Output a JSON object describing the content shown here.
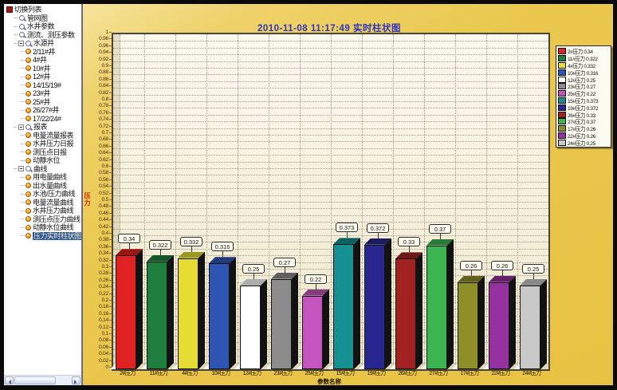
{
  "sidebar": {
    "items": [
      {
        "label": "切换列表",
        "level": 0,
        "icon": "list-icon",
        "expand": false,
        "selected": false
      },
      {
        "label": "管网图",
        "level": 1,
        "icon": "scope-icon",
        "expand": false,
        "selected": false
      },
      {
        "label": "水井参数",
        "level": 1,
        "icon": "scope-icon",
        "expand": false,
        "selected": false
      },
      {
        "label": "测流、测压参数",
        "level": 1,
        "icon": "scope-icon",
        "expand": false,
        "selected": false
      },
      {
        "label": "水源井",
        "level": 1,
        "icon": "scope-icon",
        "expand": true,
        "selected": false
      },
      {
        "label": "2/11#井",
        "level": 2,
        "icon": "ball-icon",
        "expand": false,
        "selected": false
      },
      {
        "label": "4#井",
        "level": 2,
        "icon": "ball-icon",
        "expand": false,
        "selected": false
      },
      {
        "label": "10#井",
        "level": 2,
        "icon": "ball-icon",
        "expand": false,
        "selected": false
      },
      {
        "label": "12#井",
        "level": 2,
        "icon": "ball-icon",
        "expand": false,
        "selected": false
      },
      {
        "label": "14/15/19#",
        "level": 2,
        "icon": "ball-icon",
        "expand": false,
        "selected": false
      },
      {
        "label": "23#井",
        "level": 2,
        "icon": "ball-icon",
        "expand": false,
        "selected": false
      },
      {
        "label": "25#井",
        "level": 2,
        "icon": "ball-icon",
        "expand": false,
        "selected": false
      },
      {
        "label": "26/27#井",
        "level": 2,
        "icon": "ball-icon",
        "expand": false,
        "selected": false
      },
      {
        "label": "17/22/24#",
        "level": 2,
        "icon": "ball-icon",
        "expand": false,
        "selected": false
      },
      {
        "label": "报表",
        "level": 1,
        "icon": "scope-icon",
        "expand": true,
        "selected": false
      },
      {
        "label": "电量流量报表",
        "level": 2,
        "icon": "ball-icon",
        "expand": false,
        "selected": false
      },
      {
        "label": "水井压力日报",
        "level": 2,
        "icon": "ball-icon",
        "expand": false,
        "selected": false
      },
      {
        "label": "测压点日报",
        "level": 2,
        "icon": "ball-icon",
        "expand": false,
        "selected": false
      },
      {
        "label": "动静水位",
        "level": 2,
        "icon": "ball-icon",
        "expand": false,
        "selected": false
      },
      {
        "label": "曲线",
        "level": 1,
        "icon": "scope-icon",
        "expand": true,
        "selected": false
      },
      {
        "label": "用电量曲线",
        "level": 2,
        "icon": "ball-icon",
        "expand": false,
        "selected": false
      },
      {
        "label": "出水量曲线",
        "level": 2,
        "icon": "ball-icon",
        "expand": false,
        "selected": false
      },
      {
        "label": "水池/压力曲线",
        "level": 2,
        "icon": "ball-icon",
        "expand": false,
        "selected": false
      },
      {
        "label": "电量流量曲线",
        "level": 2,
        "icon": "ball-icon",
        "expand": false,
        "selected": false
      },
      {
        "label": "水井压力曲线",
        "level": 2,
        "icon": "ball-icon",
        "expand": false,
        "selected": false
      },
      {
        "label": "测压点压力曲线",
        "level": 2,
        "icon": "ball-icon",
        "expand": false,
        "selected": false
      },
      {
        "label": "动静水位曲线",
        "level": 2,
        "icon": "ball-icon",
        "expand": false,
        "selected": false
      },
      {
        "label": "压力实时柱状图",
        "level": 2,
        "icon": "ball-icon",
        "expand": false,
        "selected": true
      }
    ]
  },
  "chart_data": {
    "type": "bar",
    "title": "2010-11-08 11:17:49 实时柱状图",
    "title_color": "#2d35c0",
    "categories": [
      "2#压力",
      "11#压力",
      "4#压力",
      "10#压力",
      "12#压力",
      "23#压力",
      "25#压力",
      "15#压力",
      "19#压力",
      "26#压力",
      "27#压力",
      "17#压力",
      "22#压力",
      "24#压力"
    ],
    "values": [
      0.34,
      0.322,
      0.332,
      0.316,
      0.25,
      0.27,
      0.22,
      0.373,
      0.372,
      0.33,
      0.37,
      0.26,
      0.26,
      0.25
    ],
    "value_labels": [
      "0.34",
      "0.322",
      "0.332",
      "0.316",
      "0.25",
      "0.27",
      "0.22",
      "0.373",
      "0.372",
      "0.33",
      "0.37",
      "0.26",
      "0.26",
      "0.25"
    ],
    "bar_colors": [
      "#e02121",
      "#1e7e3e",
      "#e6dc33",
      "#2f55b4",
      "#ffffff",
      "#8c8c8c",
      "#c455be",
      "#169090",
      "#27278f",
      "#a22222",
      "#3cb450",
      "#8f8f28",
      "#9632a0",
      "#c8c8c8"
    ],
    "xlabel": "参数名称",
    "ylabel": "压力",
    "ylim": [
      0,
      1
    ],
    "ytick_step": 0.02,
    "grid": true,
    "legend_position": "right",
    "background": "#eac84e",
    "plot_background": "#f8f4e4"
  }
}
